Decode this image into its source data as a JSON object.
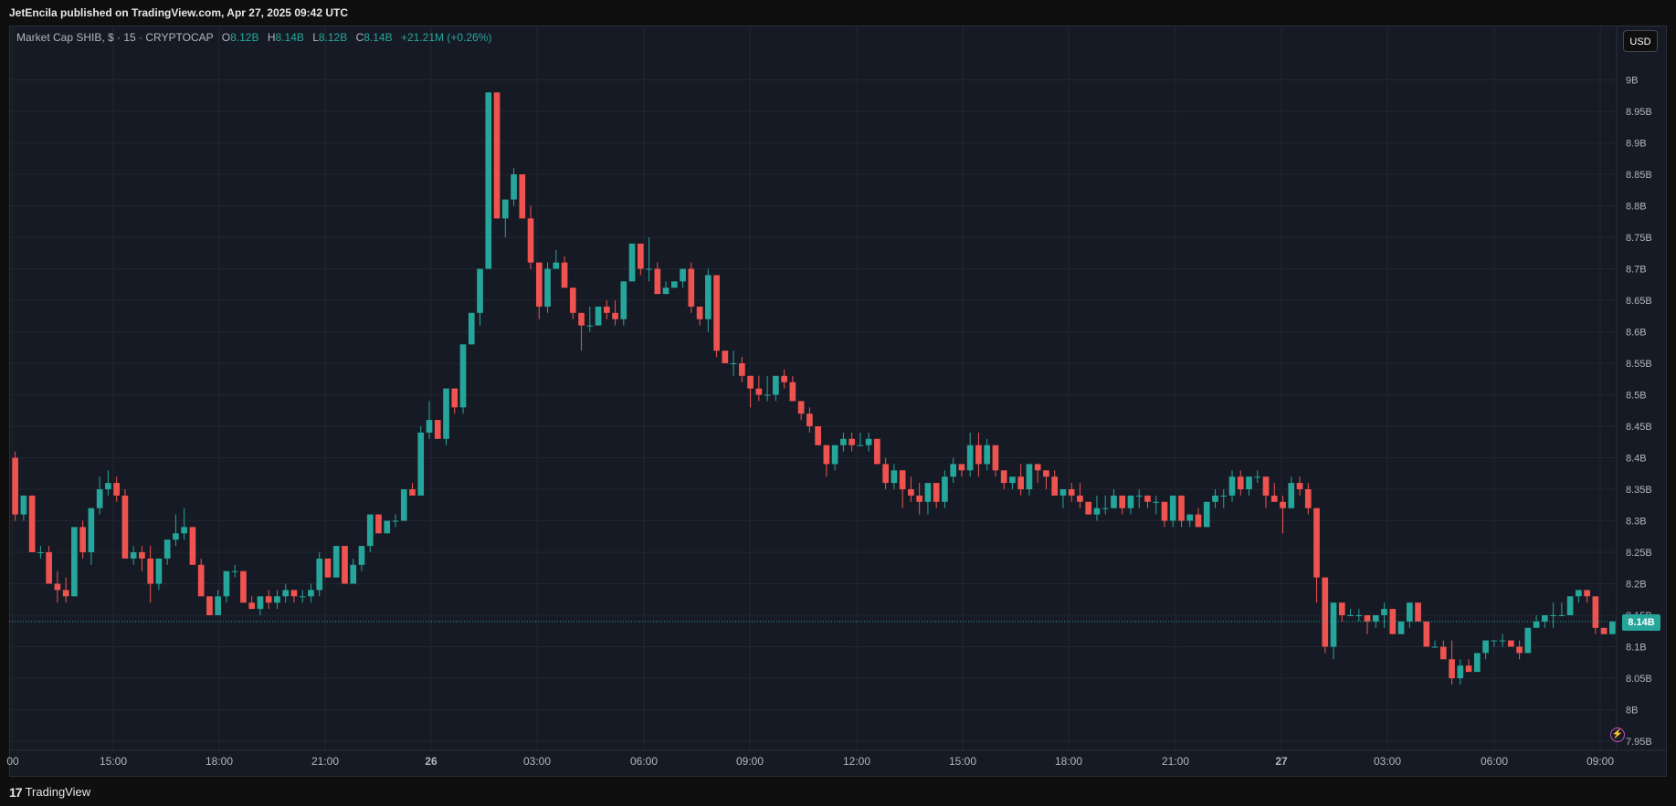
{
  "header": {
    "published": "JetEncila published on TradingView.com, Apr 27, 2025 09:42 UTC"
  },
  "legend": {
    "symbol": "Market Cap SHIB, $ · 15 · CRYPTOCAP",
    "o_label": "O",
    "o_value": "8.12B",
    "h_label": "H",
    "h_value": "8.14B",
    "l_label": "L",
    "l_value": "8.12B",
    "c_label": "C",
    "c_value": "8.14B",
    "change": "+21.21M (+0.26%)"
  },
  "currency_button": "USD",
  "last_price_label": "8.14B",
  "footer": {
    "brand": "TradingView",
    "logo_icon": "tradingview-logo-icon"
  },
  "colors": {
    "up": "#26a69a",
    "down": "#ef5350",
    "background": "#161a25",
    "grid": "#232733"
  },
  "chart_data": {
    "type": "candlestick",
    "ylim": [
      7.95,
      9.05
    ],
    "y_unit": "B",
    "y_ticks": [
      "7.95B",
      "8B",
      "8.05B",
      "8.1B",
      "8.15B",
      "8.2B",
      "8.25B",
      "8.3B",
      "8.35B",
      "8.4B",
      "8.45B",
      "8.5B",
      "8.55B",
      "8.6B",
      "8.65B",
      "8.7B",
      "8.75B",
      "8.8B",
      "8.85B",
      "8.9B",
      "8.95B",
      "9B"
    ],
    "x_ticks": [
      "00",
      "15:00",
      "18:00",
      "21:00",
      "26",
      "03:00",
      "06:00",
      "09:00",
      "12:00",
      "15:00",
      "18:00",
      "21:00",
      "27",
      "03:00",
      "06:00",
      "09:00"
    ],
    "last_price": 8.14,
    "candles": [
      [
        8.4,
        8.41,
        8.3,
        8.31
      ],
      [
        8.31,
        8.34,
        8.3,
        8.34
      ],
      [
        8.34,
        8.34,
        8.25,
        8.25
      ],
      [
        8.25,
        8.26,
        8.24,
        8.25
      ],
      [
        8.25,
        8.26,
        8.2,
        8.2
      ],
      [
        8.2,
        8.22,
        8.17,
        8.19
      ],
      [
        8.19,
        8.21,
        8.17,
        8.18
      ],
      [
        8.18,
        8.29,
        8.18,
        8.29
      ],
      [
        8.29,
        8.3,
        8.24,
        8.25
      ],
      [
        8.25,
        8.32,
        8.23,
        8.32
      ],
      [
        8.32,
        8.37,
        8.31,
        8.35
      ],
      [
        8.35,
        8.38,
        8.34,
        8.36
      ],
      [
        8.36,
        8.37,
        8.33,
        8.34
      ],
      [
        8.34,
        8.35,
        8.24,
        8.24
      ],
      [
        8.24,
        8.26,
        8.23,
        8.25
      ],
      [
        8.25,
        8.26,
        8.22,
        8.24
      ],
      [
        8.24,
        8.26,
        8.17,
        8.2
      ],
      [
        8.2,
        8.24,
        8.19,
        8.24
      ],
      [
        8.24,
        8.27,
        8.23,
        8.27
      ],
      [
        8.27,
        8.31,
        8.26,
        8.28
      ],
      [
        8.28,
        8.32,
        8.27,
        8.29
      ],
      [
        8.29,
        8.29,
        8.24,
        8.23
      ],
      [
        8.23,
        8.24,
        8.18,
        8.18
      ],
      [
        8.18,
        8.18,
        8.15,
        8.15
      ],
      [
        8.15,
        8.19,
        8.15,
        8.18
      ],
      [
        8.18,
        8.22,
        8.17,
        8.22
      ],
      [
        8.22,
        8.23,
        8.21,
        8.22
      ],
      [
        8.22,
        8.22,
        8.17,
        8.17
      ],
      [
        8.17,
        8.18,
        8.16,
        8.16
      ],
      [
        8.16,
        8.18,
        8.15,
        8.18
      ],
      [
        8.18,
        8.19,
        8.16,
        8.17
      ],
      [
        8.17,
        8.19,
        8.16,
        8.18
      ],
      [
        8.18,
        8.2,
        8.17,
        8.19
      ],
      [
        8.19,
        8.19,
        8.17,
        8.18
      ],
      [
        8.18,
        8.19,
        8.17,
        8.18
      ],
      [
        8.18,
        8.2,
        8.17,
        8.19
      ],
      [
        8.19,
        8.25,
        8.18,
        8.24
      ],
      [
        8.24,
        8.24,
        8.21,
        8.21
      ],
      [
        8.21,
        8.26,
        8.21,
        8.26
      ],
      [
        8.26,
        8.26,
        8.2,
        8.2
      ],
      [
        8.2,
        8.24,
        8.2,
        8.23
      ],
      [
        8.23,
        8.26,
        8.22,
        8.26
      ],
      [
        8.26,
        8.31,
        8.25,
        8.31
      ],
      [
        8.31,
        8.31,
        8.28,
        8.28
      ],
      [
        8.28,
        8.3,
        8.28,
        8.3
      ],
      [
        8.3,
        8.31,
        8.29,
        8.3
      ],
      [
        8.3,
        8.35,
        8.3,
        8.35
      ],
      [
        8.35,
        8.36,
        8.34,
        8.34
      ],
      [
        8.34,
        8.45,
        8.34,
        8.44
      ],
      [
        8.44,
        8.49,
        8.43,
        8.46
      ],
      [
        8.46,
        8.46,
        8.43,
        8.43
      ],
      [
        8.43,
        8.51,
        8.42,
        8.51
      ],
      [
        8.51,
        8.51,
        8.47,
        8.48
      ],
      [
        8.48,
        8.58,
        8.47,
        8.58
      ],
      [
        8.58,
        8.63,
        8.58,
        8.63
      ],
      [
        8.63,
        8.7,
        8.61,
        8.7
      ],
      [
        8.7,
        8.98,
        8.7,
        8.98
      ],
      [
        8.98,
        8.98,
        8.78,
        8.78
      ],
      [
        8.78,
        8.81,
        8.75,
        8.81
      ],
      [
        8.81,
        8.86,
        8.8,
        8.85
      ],
      [
        8.85,
        8.85,
        8.78,
        8.78
      ],
      [
        8.78,
        8.8,
        8.7,
        8.71
      ],
      [
        8.71,
        8.71,
        8.62,
        8.64
      ],
      [
        8.64,
        8.71,
        8.63,
        8.7
      ],
      [
        8.7,
        8.73,
        8.7,
        8.71
      ],
      [
        8.71,
        8.72,
        8.67,
        8.67
      ],
      [
        8.67,
        8.67,
        8.62,
        8.63
      ],
      [
        8.63,
        8.63,
        8.57,
        8.61
      ],
      [
        8.61,
        8.64,
        8.6,
        8.61
      ],
      [
        8.61,
        8.64,
        8.61,
        8.64
      ],
      [
        8.64,
        8.65,
        8.62,
        8.63
      ],
      [
        8.63,
        8.65,
        8.61,
        8.62
      ],
      [
        8.62,
        8.68,
        8.61,
        8.68
      ],
      [
        8.68,
        8.74,
        8.68,
        8.74
      ],
      [
        8.74,
        8.74,
        8.69,
        8.7
      ],
      [
        8.7,
        8.75,
        8.68,
        8.7
      ],
      [
        8.7,
        8.71,
        8.66,
        8.66
      ],
      [
        8.66,
        8.68,
        8.66,
        8.67
      ],
      [
        8.67,
        8.68,
        8.67,
        8.68
      ],
      [
        8.68,
        8.7,
        8.67,
        8.7
      ],
      [
        8.7,
        8.71,
        8.63,
        8.64
      ],
      [
        8.64,
        8.64,
        8.61,
        8.62
      ],
      [
        8.62,
        8.7,
        8.6,
        8.69
      ],
      [
        8.69,
        8.69,
        8.56,
        8.57
      ],
      [
        8.57,
        8.57,
        8.55,
        8.55
      ],
      [
        8.55,
        8.57,
        8.53,
        8.55
      ],
      [
        8.55,
        8.56,
        8.52,
        8.53
      ],
      [
        8.53,
        8.53,
        8.48,
        8.51
      ],
      [
        8.51,
        8.53,
        8.49,
        8.5
      ],
      [
        8.5,
        8.53,
        8.49,
        8.5
      ],
      [
        8.5,
        8.53,
        8.49,
        8.53
      ],
      [
        8.53,
        8.54,
        8.51,
        8.52
      ],
      [
        8.52,
        8.53,
        8.49,
        8.49
      ],
      [
        8.49,
        8.49,
        8.46,
        8.47
      ],
      [
        8.47,
        8.48,
        8.44,
        8.45
      ],
      [
        8.45,
        8.45,
        8.42,
        8.42
      ],
      [
        8.42,
        8.42,
        8.37,
        8.39
      ],
      [
        8.39,
        8.42,
        8.38,
        8.42
      ],
      [
        8.42,
        8.44,
        8.41,
        8.43
      ],
      [
        8.43,
        8.44,
        8.41,
        8.42
      ],
      [
        8.42,
        8.44,
        8.42,
        8.42
      ],
      [
        8.42,
        8.44,
        8.41,
        8.43
      ],
      [
        8.43,
        8.43,
        8.39,
        8.39
      ],
      [
        8.39,
        8.4,
        8.35,
        8.36
      ],
      [
        8.36,
        8.39,
        8.35,
        8.38
      ],
      [
        8.38,
        8.38,
        8.32,
        8.35
      ],
      [
        8.35,
        8.37,
        8.33,
        8.34
      ],
      [
        8.34,
        8.36,
        8.31,
        8.33
      ],
      [
        8.33,
        8.36,
        8.31,
        8.36
      ],
      [
        8.36,
        8.36,
        8.32,
        8.33
      ],
      [
        8.33,
        8.38,
        8.32,
        8.37
      ],
      [
        8.37,
        8.4,
        8.36,
        8.39
      ],
      [
        8.39,
        8.39,
        8.37,
        8.38
      ],
      [
        8.38,
        8.44,
        8.37,
        8.42
      ],
      [
        8.42,
        8.44,
        8.37,
        8.39
      ],
      [
        8.39,
        8.43,
        8.38,
        8.42
      ],
      [
        8.42,
        8.42,
        8.37,
        8.38
      ],
      [
        8.38,
        8.38,
        8.35,
        8.36
      ],
      [
        8.36,
        8.37,
        8.35,
        8.37
      ],
      [
        8.37,
        8.39,
        8.34,
        8.35
      ],
      [
        8.35,
        8.39,
        8.34,
        8.39
      ],
      [
        8.39,
        8.39,
        8.36,
        8.38
      ],
      [
        8.38,
        8.38,
        8.35,
        8.37
      ],
      [
        8.37,
        8.38,
        8.34,
        8.34
      ],
      [
        8.34,
        8.35,
        8.32,
        8.35
      ],
      [
        8.35,
        8.36,
        8.33,
        8.34
      ],
      [
        8.34,
        8.36,
        8.32,
        8.33
      ],
      [
        8.33,
        8.33,
        8.31,
        8.31
      ],
      [
        8.31,
        8.34,
        8.3,
        8.32
      ],
      [
        8.32,
        8.34,
        8.31,
        8.32
      ],
      [
        8.32,
        8.35,
        8.32,
        8.34
      ],
      [
        8.34,
        8.34,
        8.31,
        8.32
      ],
      [
        8.32,
        8.34,
        8.31,
        8.34
      ],
      [
        8.34,
        8.35,
        8.32,
        8.34
      ],
      [
        8.34,
        8.34,
        8.32,
        8.33
      ],
      [
        8.33,
        8.34,
        8.31,
        8.33
      ],
      [
        8.33,
        8.33,
        8.29,
        8.3
      ],
      [
        8.3,
        8.34,
        8.29,
        8.34
      ],
      [
        8.34,
        8.34,
        8.29,
        8.3
      ],
      [
        8.3,
        8.31,
        8.29,
        8.31
      ],
      [
        8.31,
        8.32,
        8.29,
        8.29
      ],
      [
        8.29,
        8.33,
        8.29,
        8.33
      ],
      [
        8.33,
        8.35,
        8.32,
        8.34
      ],
      [
        8.34,
        8.35,
        8.32,
        8.34
      ],
      [
        8.34,
        8.38,
        8.33,
        8.37
      ],
      [
        8.37,
        8.38,
        8.34,
        8.35
      ],
      [
        8.35,
        8.37,
        8.34,
        8.37
      ],
      [
        8.37,
        8.38,
        8.36,
        8.37
      ],
      [
        8.37,
        8.37,
        8.32,
        8.34
      ],
      [
        8.34,
        8.36,
        8.33,
        8.33
      ],
      [
        8.33,
        8.34,
        8.28,
        8.32
      ],
      [
        8.32,
        8.37,
        8.32,
        8.36
      ],
      [
        8.36,
        8.37,
        8.34,
        8.35
      ],
      [
        8.35,
        8.36,
        8.31,
        8.32
      ],
      [
        8.32,
        8.32,
        8.17,
        8.21
      ],
      [
        8.21,
        8.21,
        8.09,
        8.1
      ],
      [
        8.1,
        8.17,
        8.08,
        8.17
      ],
      [
        8.17,
        8.17,
        8.14,
        8.15
      ],
      [
        8.15,
        8.16,
        8.15,
        8.15
      ],
      [
        8.15,
        8.16,
        8.14,
        8.15
      ],
      [
        8.15,
        8.15,
        8.12,
        8.14
      ],
      [
        8.14,
        8.15,
        8.13,
        8.15
      ],
      [
        8.15,
        8.17,
        8.13,
        8.16
      ],
      [
        8.16,
        8.16,
        8.12,
        8.12
      ],
      [
        8.12,
        8.14,
        8.12,
        8.14
      ],
      [
        8.14,
        8.17,
        8.13,
        8.17
      ],
      [
        8.17,
        8.17,
        8.14,
        8.14
      ],
      [
        8.14,
        8.14,
        8.1,
        8.1
      ],
      [
        8.1,
        8.11,
        8.1,
        8.1
      ],
      [
        8.1,
        8.11,
        8.08,
        8.08
      ],
      [
        8.08,
        8.11,
        8.04,
        8.05
      ],
      [
        8.05,
        8.08,
        8.04,
        8.07
      ],
      [
        8.07,
        8.08,
        8.06,
        8.06
      ],
      [
        8.06,
        8.09,
        8.06,
        8.09
      ],
      [
        8.09,
        8.11,
        8.08,
        8.11
      ],
      [
        8.11,
        8.11,
        8.1,
        8.11
      ],
      [
        8.11,
        8.12,
        8.1,
        8.11
      ],
      [
        8.11,
        8.11,
        8.1,
        8.1
      ],
      [
        8.1,
        8.11,
        8.08,
        8.09
      ],
      [
        8.09,
        8.13,
        8.09,
        8.13
      ],
      [
        8.13,
        8.15,
        8.13,
        8.14
      ],
      [
        8.14,
        8.15,
        8.13,
        8.15
      ],
      [
        8.15,
        8.17,
        8.13,
        8.15
      ],
      [
        8.15,
        8.17,
        8.15,
        8.15
      ],
      [
        8.15,
        8.18,
        8.15,
        8.18
      ],
      [
        8.18,
        8.19,
        8.17,
        8.19
      ],
      [
        8.19,
        8.19,
        8.17,
        8.18
      ],
      [
        8.18,
        8.18,
        8.12,
        8.13
      ],
      [
        8.13,
        8.13,
        8.12,
        8.12
      ],
      [
        8.12,
        8.14,
        8.12,
        8.14
      ]
    ]
  }
}
